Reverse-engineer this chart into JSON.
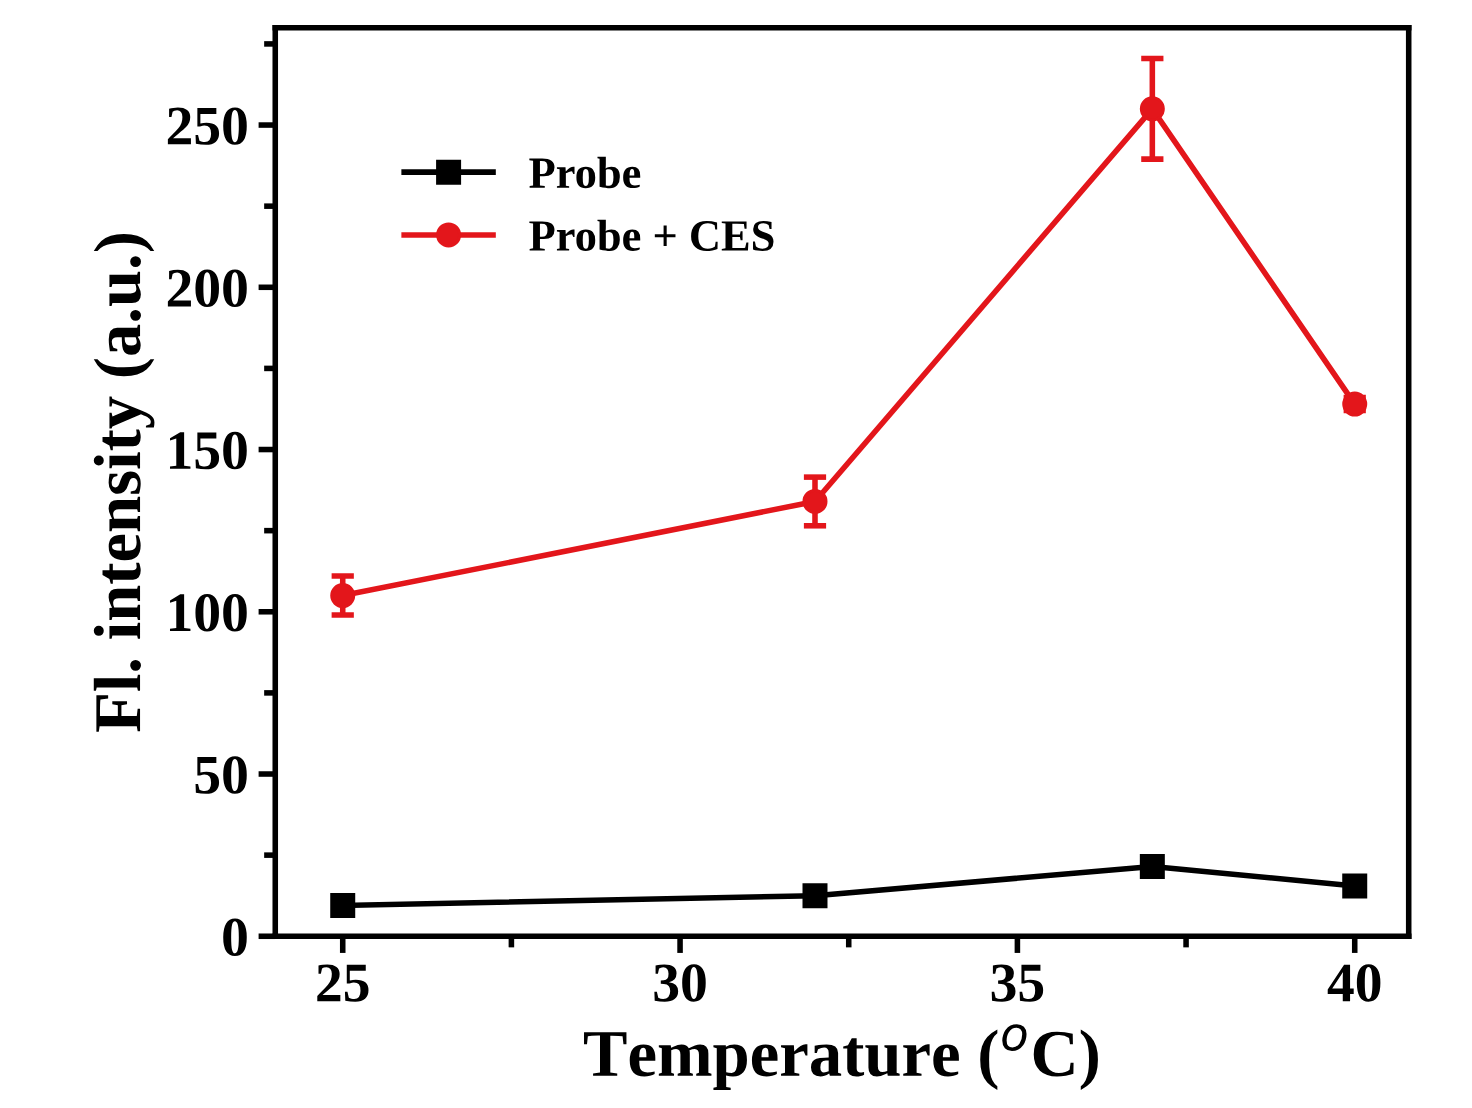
{
  "chart_data": {
    "type": "line",
    "xlabel": "Temperature ($^{o}$C)",
    "ylabel": "Fl. intensity (a.u.)",
    "x": [
      25,
      32,
      37,
      40
    ],
    "series": [
      {
        "name": "Probe",
        "color": "#000000",
        "marker": "square",
        "values": [
          9.5,
          12.5,
          21.5,
          15.5
        ]
      },
      {
        "name": "Probe + CES",
        "color": "#e3161b",
        "marker": "circle",
        "values": [
          105,
          134,
          255,
          164
        ],
        "errors": [
          6,
          7.5,
          15.5,
          2
        ]
      }
    ],
    "xlim": [
      24,
      40.8
    ],
    "ylim": [
      0,
      280
    ],
    "xticks": [
      25,
      30,
      35,
      40
    ],
    "yticks": [
      0,
      50,
      100,
      150,
      200,
      250
    ],
    "grid": false,
    "legend": "top left",
    "line_style": "solid"
  }
}
